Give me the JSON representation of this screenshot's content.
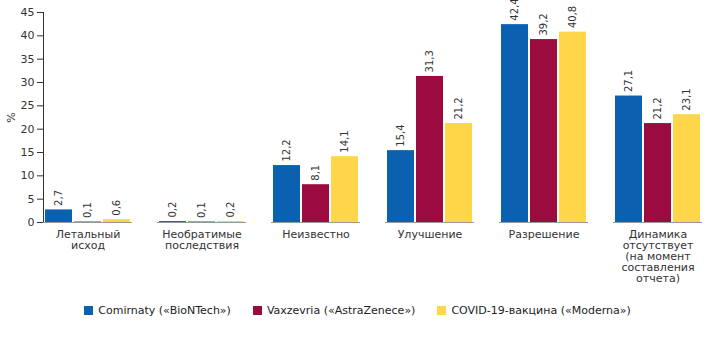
{
  "chart_data": {
    "type": "bar",
    "y_label": "%",
    "categories": [
      "Летальный\nисход",
      "Необратимые\nпоследствия",
      "Неизвестно",
      "Улучшение",
      "Разрешение",
      "Динамика\nотсутствует\n(на момент\nсоставления\nотчета)"
    ],
    "series": [
      {
        "name": "Comirnaty («BioNTech»)",
        "color": "#0b60b0",
        "values": [
          2.7,
          0.2,
          12.2,
          15.4,
          42.4,
          27.1
        ],
        "value_labels": [
          "2,7",
          "0,2",
          "12,2",
          "15,4",
          "42,4",
          "27,1"
        ]
      },
      {
        "name": "Vaxzevria («AstraZenece»)",
        "color": "#9c0b3f",
        "values": [
          0.1,
          0.1,
          8.1,
          31.3,
          39.2,
          21.2
        ],
        "value_labels": [
          "0,1",
          "0,1",
          "8,1",
          "31,3",
          "39,2",
          "21,2"
        ]
      },
      {
        "name": "COVID-19-вакцина («Moderna»)",
        "color": "#ffd54a",
        "values": [
          0.6,
          0.2,
          14.1,
          21.2,
          40.8,
          23.1
        ],
        "value_labels": [
          "0,6",
          "0,2",
          "14,1",
          "21,2",
          "40,8",
          "23,1"
        ]
      }
    ],
    "ylim": [
      0,
      45
    ],
    "yticks": [
      0,
      5,
      10,
      15,
      20,
      25,
      30,
      35,
      40,
      45
    ],
    "grid": false,
    "data_labels": true,
    "legend": "bottom"
  }
}
